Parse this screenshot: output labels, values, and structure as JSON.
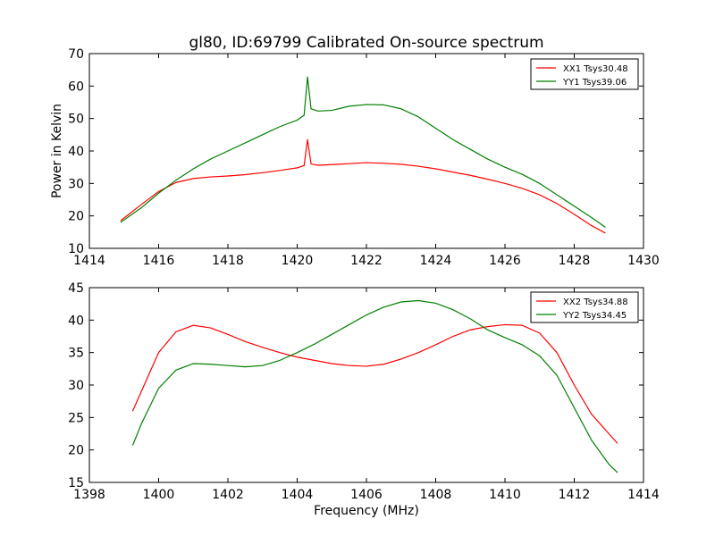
{
  "figure": {
    "title": "gl80, ID:69799 Calibrated On-source spectrum",
    "xlabel": "Frequency (MHz)",
    "ylabel": "Power in Kelvin"
  },
  "chart_data": [
    {
      "type": "line",
      "title": "gl80, ID:69799 Calibrated On-source spectrum",
      "xlabel": "",
      "ylabel": "Power in Kelvin",
      "xlim": [
        1414,
        1430
      ],
      "ylim": [
        10,
        70
      ],
      "xticks": [
        "1414",
        "1416",
        "1418",
        "1420",
        "1422",
        "1424",
        "1426",
        "1428",
        "1430"
      ],
      "yticks": [
        "10",
        "20",
        "30",
        "40",
        "50",
        "60",
        "70"
      ],
      "legend_position": "top-right",
      "series": [
        {
          "name": "XX1 Tsys30.48",
          "color": "#ff0000",
          "x": [
            1414.9,
            1415.5,
            1416.0,
            1416.5,
            1417.0,
            1417.5,
            1418.0,
            1418.5,
            1419.0,
            1419.5,
            1420.0,
            1420.2,
            1420.3,
            1420.4,
            1420.6,
            1421.0,
            1421.5,
            1422.0,
            1422.5,
            1423.0,
            1423.5,
            1424.0,
            1424.5,
            1425.0,
            1425.5,
            1426.0,
            1426.5,
            1427.0,
            1427.5,
            1428.0,
            1428.5,
            1428.9
          ],
          "y": [
            18.5,
            23.5,
            27.5,
            30.3,
            31.5,
            32.0,
            32.3,
            32.7,
            33.3,
            34.0,
            34.8,
            35.5,
            43.5,
            36.0,
            35.6,
            35.8,
            36.1,
            36.4,
            36.2,
            35.9,
            35.3,
            34.5,
            33.5,
            32.5,
            31.3,
            30.0,
            28.5,
            26.5,
            23.8,
            20.5,
            17.0,
            14.7
          ]
        },
        {
          "name": "YY1 Tsys39.06",
          "color": "#008000",
          "x": [
            1414.9,
            1415.5,
            1416.0,
            1416.5,
            1417.0,
            1417.5,
            1418.0,
            1418.5,
            1419.0,
            1419.5,
            1420.0,
            1420.2,
            1420.3,
            1420.4,
            1420.6,
            1421.0,
            1421.5,
            1422.0,
            1422.5,
            1423.0,
            1423.5,
            1424.0,
            1424.5,
            1425.0,
            1425.5,
            1426.0,
            1426.5,
            1427.0,
            1427.5,
            1428.0,
            1428.5,
            1428.9
          ],
          "y": [
            18.0,
            22.5,
            27.0,
            31.0,
            34.5,
            37.5,
            40.0,
            42.5,
            45.0,
            47.5,
            49.5,
            51.0,
            62.8,
            53.0,
            52.3,
            52.5,
            53.8,
            54.3,
            54.2,
            53.0,
            50.5,
            47.0,
            43.5,
            40.5,
            37.5,
            35.0,
            32.8,
            30.0,
            26.5,
            23.0,
            19.5,
            16.5
          ]
        }
      ]
    },
    {
      "type": "line",
      "title": "",
      "xlabel": "Frequency (MHz)",
      "ylabel": "",
      "xlim": [
        1398,
        1414
      ],
      "ylim": [
        15,
        45
      ],
      "xticks": [
        "1398",
        "1400",
        "1402",
        "1404",
        "1406",
        "1408",
        "1410",
        "1412",
        "1414"
      ],
      "yticks": [
        "15",
        "20",
        "25",
        "30",
        "35",
        "40",
        "45"
      ],
      "legend_position": "top-right",
      "series": [
        {
          "name": "XX2 Tsys34.88",
          "color": "#ff0000",
          "x": [
            1399.25,
            1399.5,
            1400.0,
            1400.5,
            1401.0,
            1401.5,
            1402.0,
            1402.5,
            1403.0,
            1403.5,
            1404.0,
            1404.5,
            1405.0,
            1405.5,
            1406.0,
            1406.5,
            1407.0,
            1407.5,
            1408.0,
            1408.5,
            1409.0,
            1409.5,
            1410.0,
            1410.5,
            1411.0,
            1411.5,
            1412.0,
            1412.5,
            1413.0,
            1413.25
          ],
          "y": [
            26.0,
            29.0,
            35.0,
            38.2,
            39.2,
            38.8,
            37.8,
            36.7,
            35.8,
            35.0,
            34.3,
            33.8,
            33.3,
            33.0,
            32.9,
            33.2,
            34.0,
            35.0,
            36.2,
            37.5,
            38.5,
            39.0,
            39.3,
            39.2,
            38.0,
            35.0,
            30.0,
            25.5,
            22.5,
            21.0
          ]
        },
        {
          "name": "YY2 Tsys34.45",
          "color": "#008000",
          "x": [
            1399.25,
            1399.5,
            1400.0,
            1400.5,
            1401.0,
            1401.5,
            1402.0,
            1402.5,
            1403.0,
            1403.5,
            1404.0,
            1404.5,
            1405.0,
            1405.5,
            1406.0,
            1406.5,
            1407.0,
            1407.5,
            1408.0,
            1408.5,
            1409.0,
            1409.5,
            1410.0,
            1410.5,
            1411.0,
            1411.5,
            1412.0,
            1412.5,
            1413.0,
            1413.25
          ],
          "y": [
            20.7,
            24.0,
            29.5,
            32.3,
            33.3,
            33.2,
            33.0,
            32.8,
            33.0,
            33.8,
            35.0,
            36.3,
            37.8,
            39.3,
            40.8,
            42.0,
            42.8,
            43.0,
            42.6,
            41.6,
            40.2,
            38.5,
            37.3,
            36.2,
            34.5,
            31.5,
            26.5,
            21.5,
            17.8,
            16.5
          ]
        }
      ]
    }
  ]
}
